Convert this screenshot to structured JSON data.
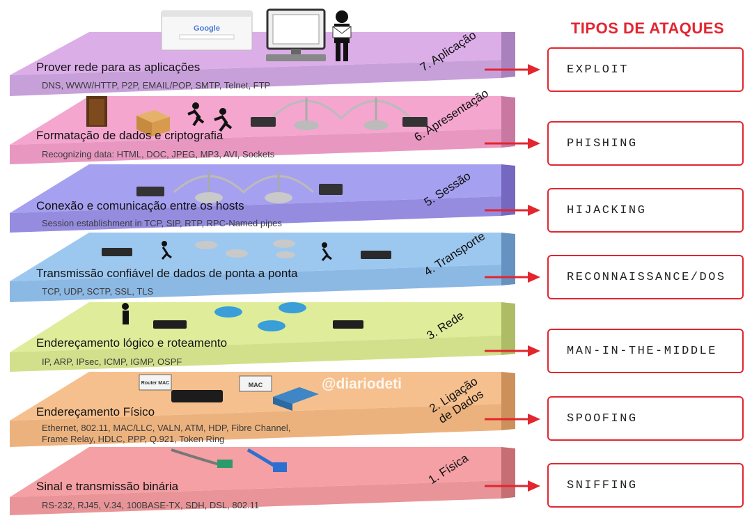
{
  "attacks_title": "TIPOS DE ATAQUES",
  "watermark": "@diariodeti",
  "icons": {
    "browser_logo": "Google",
    "router_tag": "Router MAC",
    "mac_tag": "MAC"
  },
  "layers": [
    {
      "number_name": "7. Aplicação",
      "title": "Prover rede para as aplicações",
      "protocols": "DNS, WWW/HTTP, P2P, EMAIL/POP, SMTP, Telnet, FTP",
      "color_top": "#dcaee8",
      "color_band": "#c7a0da",
      "color_side": "#a982bd",
      "attack": "EXPLOIT",
      "illustration": "browser-computer-user"
    },
    {
      "number_name": "6. Apresentação",
      "title": "Formatação de dados e criptografia",
      "protocols": "Recognizing data: HTML, DOC, JPEG, MP3, AVI, Sockets",
      "color_top": "#f4a6cf",
      "color_band": "#e898c0",
      "color_side": "#c978a2",
      "attack": "PHISHING",
      "illustration": "door-box-runners-bridge"
    },
    {
      "number_name": "5. Sessão",
      "title": "Conexão e comunicação entre os hosts",
      "protocols": "Session establishment in TCP, SIP, RTP, RPC-Named pipes",
      "color_top": "#a6a0f0",
      "color_band": "#958ce0",
      "color_side": "#7468c0",
      "attack": "HIJACKING",
      "illustration": "routers-bridge"
    },
    {
      "number_name": "4. Transporte",
      "title": "Transmissão confiável de dados de ponta a ponta",
      "protocols": "TCP, UDP, SCTP, SSL, TLS",
      "color_top": "#9cc8f0",
      "color_band": "#8cb8e4",
      "color_side": "#6592c0",
      "attack": "RECONNAISSANCE/DOS",
      "illustration": "routers-runners"
    },
    {
      "number_name": "3. Rede",
      "title": "Endereçamento lógico e roteamento",
      "protocols": "IP, ARP, IPsec, ICMP, IGMP, OSPF",
      "color_top": "#dfec9a",
      "color_band": "#d2e08c",
      "color_side": "#aebc66",
      "attack": "MAN-IN-THE-MIDDLE",
      "illustration": "routers-wireless"
    },
    {
      "number_name": "2. Ligação de Dados",
      "title": "Endereçamento Físico",
      "protocols": "Ethernet, 802.11, MAC/LLC, VALN, ATM, HDP, Fibre Channel,\nFrame Relay, HDLC,  PPP, Q.921, Token Ring",
      "color_top": "#f6c08e",
      "color_band": "#ecb27e",
      "color_side": "#cc905a",
      "attack": "SPOOFING",
      "illustration": "router-switch-mac"
    },
    {
      "number_name": "1. Física",
      "title": "Sinal e transmissão binária",
      "protocols": "RS-232, RJ45, V.34, 100BASE-TX, SDH, DSL, 802.11",
      "color_top": "#f4a0a4",
      "color_band": "#e89498",
      "color_side": "#c66e72",
      "attack": "SNIFFING",
      "illustration": "cables"
    }
  ],
  "accent_color": "#e2262f"
}
